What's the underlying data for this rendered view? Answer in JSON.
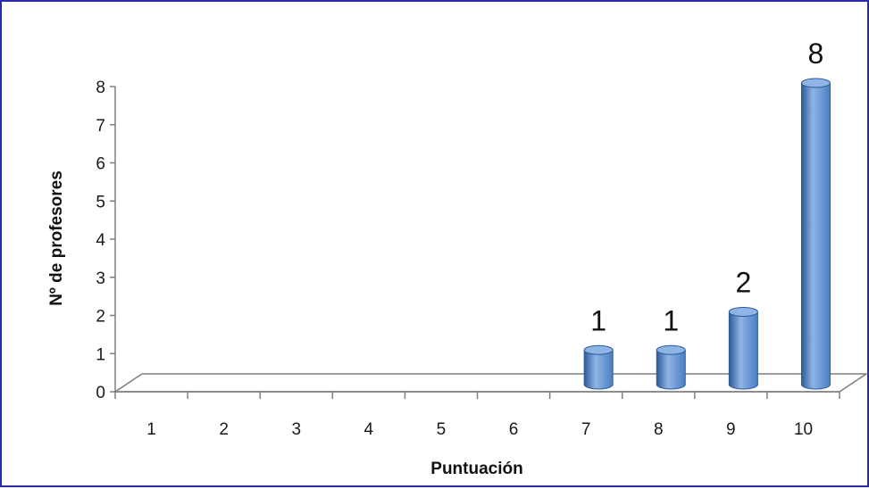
{
  "chart_data": {
    "type": "bar",
    "style": "3d-cylinder",
    "categories": [
      "1",
      "2",
      "3",
      "4",
      "5",
      "6",
      "7",
      "8",
      "9",
      "10"
    ],
    "series": [
      {
        "values": [
          0,
          0,
          0,
          0,
          0,
          0,
          1,
          1,
          2,
          8
        ]
      }
    ],
    "data_labels": [
      "",
      "",
      "",
      "",
      "",
      "",
      "1",
      "1",
      "2",
      "8"
    ],
    "xlabel": "Puntuación",
    "ylabel": "Nº de profesores",
    "ylim": [
      0,
      8
    ],
    "yticks": [
      "0",
      "1",
      "2",
      "3",
      "4",
      "5",
      "6",
      "7",
      "8"
    ],
    "grid": false,
    "legend": "none",
    "colors": {
      "bar": "#4a7ec4",
      "bar_dark": "#2d5a96",
      "bar_light": "#8fb4e6",
      "axis": "#7f7f7f",
      "frame": "#2a2ab0"
    }
  }
}
